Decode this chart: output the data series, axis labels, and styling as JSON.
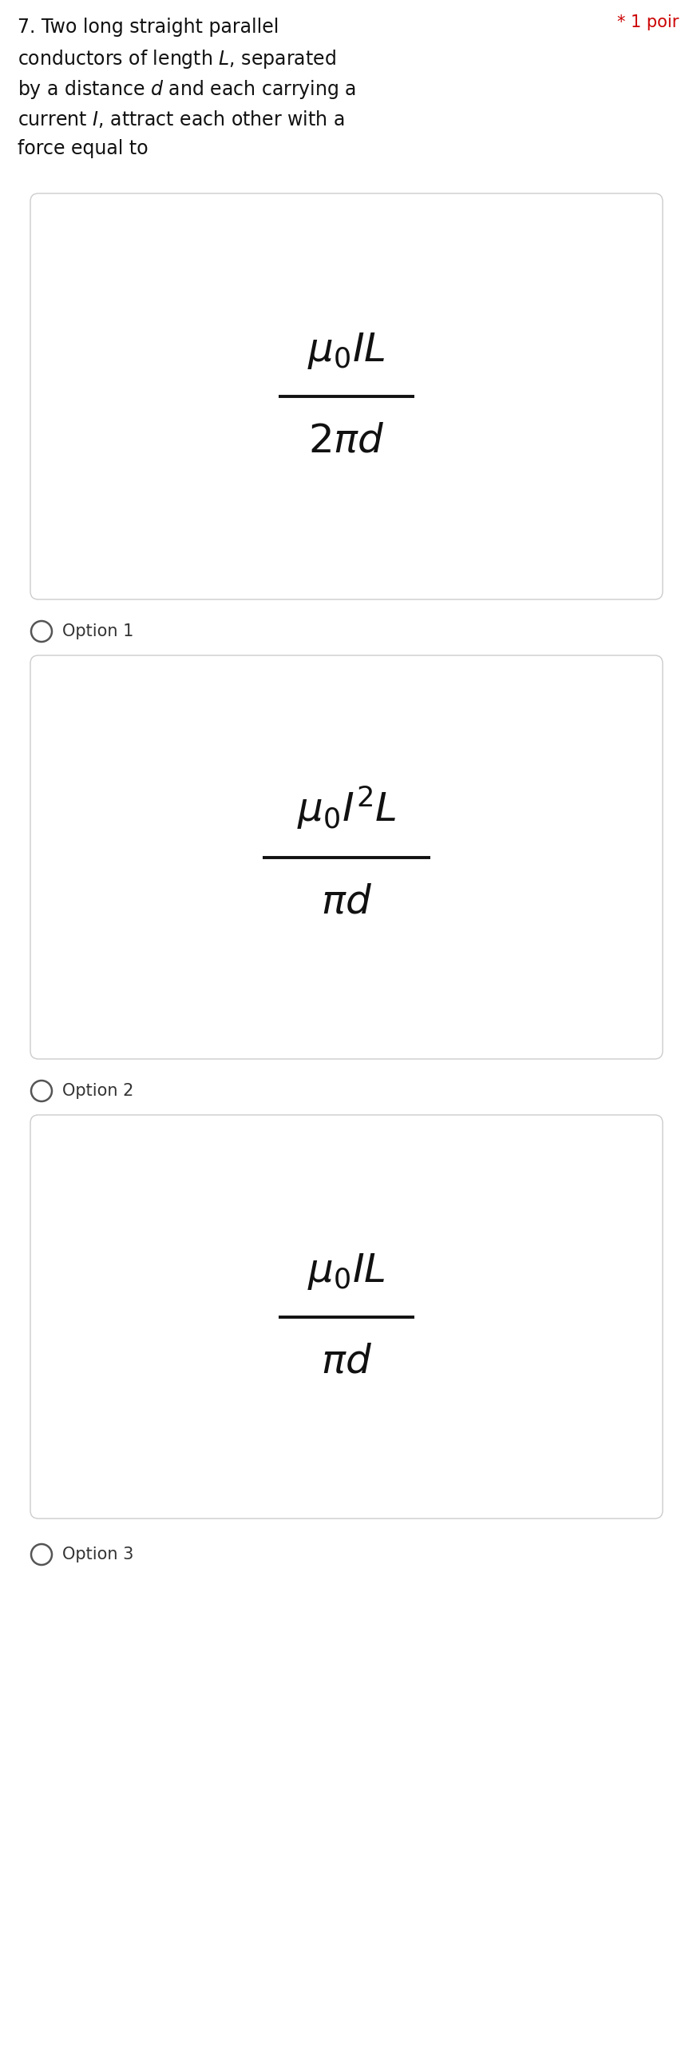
{
  "bg_color": "#ffffff",
  "options": [
    {
      "numerator": "$\\mu_0 IL$",
      "denominator": "$2\\pi d$",
      "label": "Option 1"
    },
    {
      "numerator": "$\\mu_0 I^2 L$",
      "denominator": "$\\pi d$",
      "label": "Option 2"
    },
    {
      "numerator": "$\\mu_0 IL$",
      "denominator": "$\\pi d$",
      "label": "Option 3"
    }
  ],
  "box_edge_color": "#cccccc",
  "box_face_color": "#ffffff",
  "circle_color": "#555555",
  "option_label_color": "#333333",
  "question_font_size": 17,
  "option_formula_size": 36,
  "option_label_size": 15,
  "points_color": "#cc0000"
}
